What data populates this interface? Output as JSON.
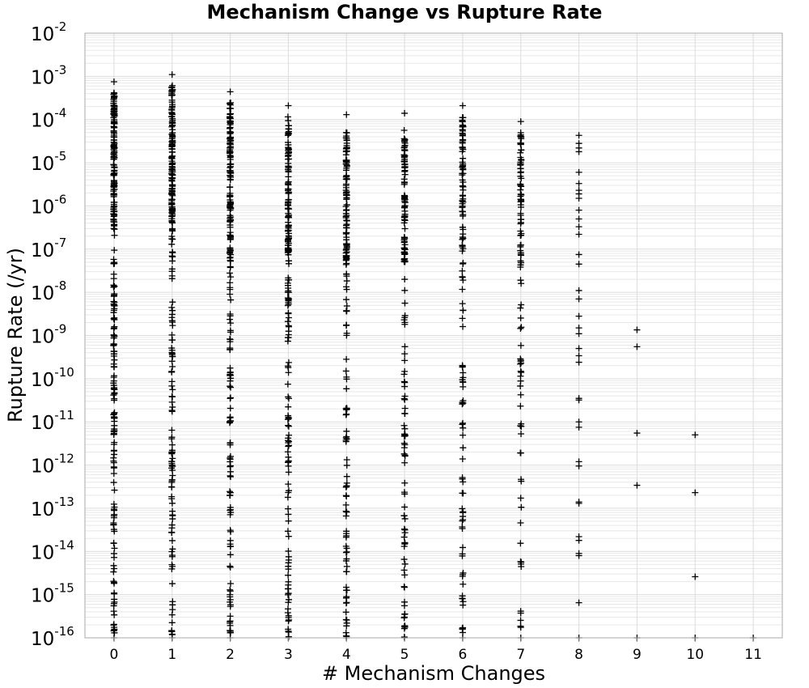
{
  "chart_data": {
    "type": "scatter",
    "title": "Mechanism Change vs Rupture Rate",
    "xlabel": "# Mechanism Changes",
    "ylabel": "Rupture Rate (/yr)",
    "xlim": [
      -0.5,
      11.5
    ],
    "ylim": [
      1e-16,
      0.01
    ],
    "y_scale": "log",
    "marker": "plus",
    "marker_color": "#000000",
    "grid": true,
    "x_ticks": [
      "0",
      "1",
      "2",
      "3",
      "4",
      "5",
      "6",
      "7",
      "8",
      "9",
      "10",
      "11"
    ],
    "y_tick_base": "10",
    "y_tick_exponents": [
      "-2",
      "-3",
      "-4",
      "-5",
      "-6",
      "-7",
      "-8",
      "-9",
      "-10",
      "-11",
      "-12",
      "-13",
      "-14",
      "-15",
      "-16"
    ],
    "dense_columns": [
      {
        "x": 0,
        "y_max": 0.00075,
        "y_min": 1e-16
      },
      {
        "x": 1,
        "y_max": 0.0011,
        "y_min": 1e-16
      },
      {
        "x": 2,
        "y_max": 0.00044,
        "y_min": 1e-16
      },
      {
        "x": 3,
        "y_max": 0.00021,
        "y_min": 1e-16
      },
      {
        "x": 4,
        "y_max": 0.00013,
        "y_min": 1e-16
      },
      {
        "x": 5,
        "y_max": 0.00014,
        "y_min": 1e-16
      },
      {
        "x": 6,
        "y_max": 0.00021,
        "y_min": 1e-16
      },
      {
        "x": 7,
        "y_max": 9e-05,
        "y_min": 1e-16
      }
    ],
    "points": [
      {
        "x": 8,
        "y": 4.3e-05
      },
      {
        "x": 8,
        "y": 2.8e-05
      },
      {
        "x": 8,
        "y": 2.2e-05
      },
      {
        "x": 8,
        "y": 1.8e-05
      },
      {
        "x": 8,
        "y": 6e-06
      },
      {
        "x": 8,
        "y": 3.3e-06
      },
      {
        "x": 8,
        "y": 2.3e-06
      },
      {
        "x": 8,
        "y": 1.9e-06
      },
      {
        "x": 8,
        "y": 1.5e-06
      },
      {
        "x": 8,
        "y": 8e-07
      },
      {
        "x": 8,
        "y": 5e-07
      },
      {
        "x": 8,
        "y": 3.3e-07
      },
      {
        "x": 8,
        "y": 2.2e-07
      },
      {
        "x": 8,
        "y": 7.5e-08
      },
      {
        "x": 8,
        "y": 4.5e-08
      },
      {
        "x": 8,
        "y": 1.1e-08
      },
      {
        "x": 8,
        "y": 7e-09
      },
      {
        "x": 8,
        "y": 2.8e-09
      },
      {
        "x": 8,
        "y": 1.5e-09
      },
      {
        "x": 8,
        "y": 1.1e-09
      },
      {
        "x": 8,
        "y": 5e-10
      },
      {
        "x": 8,
        "y": 3.4e-10
      },
      {
        "x": 8,
        "y": 2.4e-10
      },
      {
        "x": 8,
        "y": 3.5e-11
      },
      {
        "x": 8,
        "y": 3.2e-11
      },
      {
        "x": 8,
        "y": 1e-11
      },
      {
        "x": 8,
        "y": 7.5e-12
      },
      {
        "x": 8,
        "y": 1.2e-12
      },
      {
        "x": 8,
        "y": 9.5e-13
      },
      {
        "x": 8,
        "y": 1.4e-13
      },
      {
        "x": 8,
        "y": 1.3e-13
      },
      {
        "x": 8,
        "y": 2.2e-14
      },
      {
        "x": 8,
        "y": 1.8e-14
      },
      {
        "x": 8,
        "y": 9e-15
      },
      {
        "x": 8,
        "y": 8e-15
      },
      {
        "x": 8,
        "y": 6.5e-16
      },
      {
        "x": 8,
        "y": 1e-16
      },
      {
        "x": 9,
        "y": 1.35e-09
      },
      {
        "x": 9,
        "y": 5.5e-10
      },
      {
        "x": 9,
        "y": 5.5e-12
      },
      {
        "x": 9,
        "y": 3.4e-13
      },
      {
        "x": 9,
        "y": 1e-16
      },
      {
        "x": 10,
        "y": 5e-12
      },
      {
        "x": 10,
        "y": 2.3e-13
      },
      {
        "x": 10,
        "y": 2.6e-15
      },
      {
        "x": 10,
        "y": 1e-16
      },
      {
        "x": 11,
        "y": 1e-16
      }
    ]
  }
}
